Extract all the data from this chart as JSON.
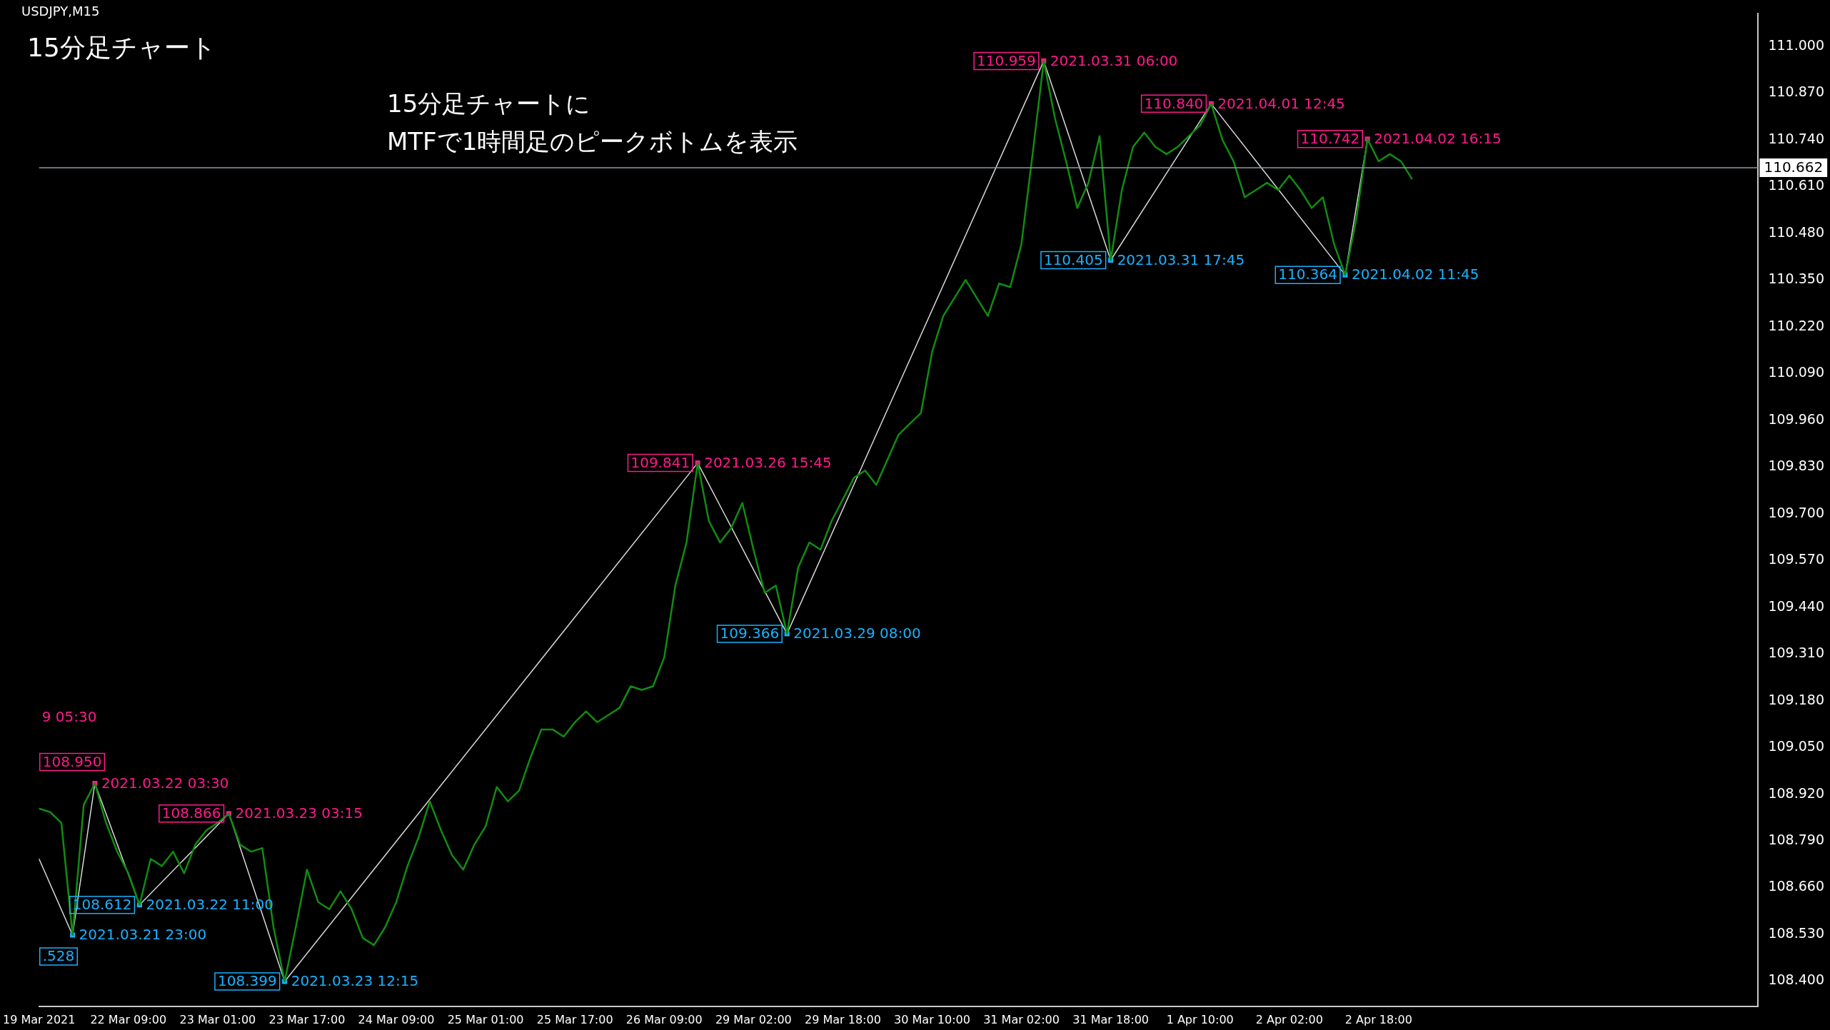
{
  "chart_data": {
    "type": "line",
    "title": "USDJPY,M15",
    "categories": [
      "19 Mar 2021",
      null,
      null,
      null,
      null,
      null,
      null,
      null,
      "22 Mar 09:00",
      null,
      null,
      null,
      null,
      null,
      null,
      null,
      "23 Mar 01:00",
      null,
      null,
      null,
      null,
      null,
      null,
      null,
      "23 Mar 17:00",
      null,
      null,
      null,
      null,
      null,
      null,
      null,
      "24 Mar 09:00",
      null,
      null,
      null,
      null,
      null,
      null,
      null,
      "25 Mar 01:00",
      null,
      null,
      null,
      null,
      null,
      null,
      null,
      "25 Mar 17:00",
      null,
      null,
      null,
      null,
      null,
      null,
      null,
      "26 Mar 09:00",
      null,
      null,
      null,
      null,
      null,
      null,
      null,
      "29 Mar 02:00",
      null,
      null,
      null,
      null,
      null,
      null,
      null,
      "29 Mar 18:00",
      null,
      null,
      null,
      null,
      null,
      null,
      null,
      "30 Mar 10:00",
      null,
      null,
      null,
      null,
      null,
      null,
      null,
      "31 Mar 02:00",
      null,
      null,
      null,
      null,
      null,
      null,
      null,
      "31 Mar 18:00",
      null,
      null,
      null,
      null,
      null,
      null,
      null,
      "1 Apr 10:00",
      null,
      null,
      null,
      null,
      null,
      null,
      null,
      "2 Apr 02:00",
      null,
      null,
      null,
      null,
      null,
      null,
      null,
      "2 Apr 18:00",
      null,
      null,
      null,
      null,
      null,
      null,
      null,
      null,
      null,
      null,
      null,
      null,
      null,
      null,
      null,
      null,
      null,
      null,
      null,
      null,
      null,
      null,
      null,
      null,
      null,
      null,
      null,
      null,
      null,
      null,
      null,
      null,
      null,
      null
    ],
    "series": [
      {
        "color": "#118c11",
        "marker": "none",
        "values": [
          108.88,
          108.87,
          108.84,
          108.528,
          108.89,
          108.95,
          108.84,
          108.76,
          108.7,
          108.612,
          108.74,
          108.72,
          108.76,
          108.7,
          108.78,
          108.82,
          108.84,
          108.866,
          108.78,
          108.76,
          108.77,
          108.55,
          108.399,
          108.55,
          108.71,
          108.62,
          108.6,
          108.65,
          108.6,
          108.52,
          108.5,
          108.55,
          108.62,
          108.72,
          108.8,
          108.9,
          108.82,
          108.75,
          108.71,
          108.78,
          108.83,
          108.94,
          108.9,
          108.93,
          109.02,
          109.1,
          109.1,
          109.08,
          109.12,
          109.15,
          109.12,
          109.14,
          109.16,
          109.22,
          109.21,
          109.22,
          109.3,
          109.5,
          109.62,
          109.841,
          109.68,
          109.62,
          109.66,
          109.73,
          109.6,
          109.48,
          109.5,
          109.366,
          109.55,
          109.62,
          109.6,
          109.68,
          109.74,
          109.8,
          109.82,
          109.78,
          109.85,
          109.92,
          109.95,
          109.98,
          110.15,
          110.25,
          110.3,
          110.35,
          110.3,
          110.25,
          110.34,
          110.33,
          110.45,
          110.7,
          110.959,
          110.8,
          110.68,
          110.55,
          110.62,
          110.75,
          110.405,
          110.6,
          110.72,
          110.76,
          110.72,
          110.7,
          110.72,
          110.75,
          110.78,
          110.84,
          110.74,
          110.68,
          110.58,
          110.6,
          110.62,
          110.6,
          110.64,
          110.6,
          110.55,
          110.58,
          110.45,
          110.364,
          110.52,
          110.742,
          110.68,
          110.7,
          110.68,
          110.63,
          null,
          null,
          null,
          null,
          null,
          null,
          null,
          null,
          null,
          null,
          null,
          null,
          null,
          null,
          null,
          null,
          null,
          null,
          null,
          null,
          null,
          null,
          null,
          null,
          null,
          null,
          null,
          null,
          null,
          null,
          null
        ]
      },
      {
        "color": "#d8d8d8",
        "marker": "square",
        "values": [
          108.74,
          null,
          null,
          108.528,
          null,
          108.95,
          null,
          null,
          null,
          108.612,
          null,
          null,
          null,
          null,
          null,
          null,
          null,
          108.866,
          null,
          null,
          null,
          null,
          108.399,
          null,
          null,
          null,
          null,
          null,
          null,
          null,
          null,
          null,
          null,
          null,
          null,
          null,
          null,
          null,
          null,
          null,
          null,
          null,
          null,
          null,
          null,
          null,
          null,
          null,
          null,
          null,
          null,
          null,
          null,
          null,
          null,
          null,
          null,
          null,
          null,
          109.841,
          null,
          null,
          null,
          null,
          null,
          null,
          null,
          109.366,
          null,
          null,
          null,
          null,
          null,
          null,
          null,
          null,
          null,
          null,
          null,
          null,
          null,
          null,
          null,
          null,
          null,
          null,
          null,
          null,
          null,
          null,
          110.959,
          null,
          null,
          null,
          null,
          null,
          110.405,
          null,
          null,
          null,
          null,
          null,
          null,
          null,
          null,
          110.84,
          null,
          null,
          null,
          null,
          null,
          null,
          null,
          null,
          null,
          null,
          null,
          110.364,
          null,
          110.742,
          null,
          null,
          null,
          null,
          null,
          null,
          null,
          null,
          null,
          null,
          null,
          null,
          null,
          null,
          null,
          null,
          null,
          null,
          null,
          null,
          null,
          null,
          null,
          null,
          null,
          null,
          null,
          null,
          null,
          null,
          null,
          null,
          null,
          null,
          null
        ],
        "colors": [
          null,
          null,
          null,
          "#1ab2ff",
          null,
          "#ff1a8c",
          null,
          null,
          null,
          "#1ab2ff",
          null,
          null,
          null,
          null,
          null,
          null,
          null,
          "#ff1a8c",
          null,
          null,
          null,
          null,
          "#1ab2ff",
          null,
          null,
          null,
          null,
          null,
          null,
          null,
          null,
          null,
          null,
          null,
          null,
          null,
          null,
          null,
          null,
          null,
          null,
          null,
          null,
          null,
          null,
          null,
          null,
          null,
          null,
          null,
          null,
          null,
          null,
          null,
          null,
          null,
          null,
          null,
          null,
          "#ff1a8c",
          null,
          null,
          null,
          null,
          null,
          null,
          null,
          "#1ab2ff",
          null,
          null,
          null,
          null,
          null,
          null,
          null,
          null,
          null,
          null,
          null,
          null,
          null,
          null,
          null,
          null,
          null,
          null,
          null,
          null,
          null,
          null,
          "#ff1a8c",
          null,
          null,
          null,
          null,
          null,
          "#1ab2ff",
          null,
          null,
          null,
          null,
          null,
          null,
          null,
          null,
          "#ff1a8c",
          null,
          null,
          null,
          null,
          null,
          null,
          null,
          null,
          null,
          null,
          null,
          "#1ab2ff",
          null,
          "#ff1a8c",
          null,
          null,
          null,
          null,
          null,
          null,
          null,
          null,
          null,
          null,
          null,
          null,
          null,
          null,
          null,
          null,
          null,
          null,
          null,
          null,
          null,
          null,
          null,
          null,
          null,
          null,
          null,
          null,
          null,
          null,
          null,
          null,
          null,
          null,
          null
        ],
        "value_labels": [
          null,
          null,
          null,
          null,
          null,
          "108.950",
          null,
          null,
          null,
          "108.612",
          null,
          null,
          null,
          null,
          null,
          null,
          null,
          "108.866",
          null,
          null,
          null,
          null,
          "108.399",
          null,
          null,
          null,
          null,
          null,
          null,
          null,
          null,
          null,
          null,
          null,
          null,
          null,
          null,
          null,
          null,
          null,
          null,
          null,
          null,
          null,
          null,
          null,
          null,
          null,
          null,
          null,
          null,
          null,
          null,
          null,
          null,
          null,
          null,
          null,
          null,
          "109.841",
          null,
          null,
          null,
          null,
          null,
          null,
          null,
          "109.366",
          null,
          null,
          null,
          null,
          null,
          null,
          null,
          null,
          null,
          null,
          null,
          null,
          null,
          null,
          null,
          null,
          null,
          null,
          null,
          null,
          null,
          null,
          "110.959",
          null,
          null,
          null,
          null,
          null,
          "110.405",
          null,
          null,
          null,
          null,
          null,
          null,
          null,
          null,
          "110.840",
          null,
          null,
          null,
          null,
          null,
          null,
          null,
          null,
          null,
          null,
          null,
          "110.364",
          null,
          "110.742",
          null,
          null,
          null,
          null,
          null,
          null,
          null,
          null,
          null,
          null,
          null,
          null,
          null,
          null,
          null,
          null,
          null,
          null,
          null,
          null,
          null,
          null,
          null,
          null,
          null,
          null,
          null,
          null,
          null,
          null,
          null,
          null,
          null,
          null,
          null
        ]
      }
    ],
    "ylim": [
      108.33,
      111.09
    ],
    "yticks": [
      {
        "value": 108.4,
        "label": "108.400"
      },
      {
        "value": 108.53,
        "label": "108.530"
      },
      {
        "value": 108.66,
        "label": "108.660"
      },
      {
        "value": 108.79,
        "label": "108.790"
      },
      {
        "value": 108.92,
        "label": "108.920"
      },
      {
        "value": 109.05,
        "label": "109.050"
      },
      {
        "value": 109.18,
        "label": "109.180"
      },
      {
        "value": 109.31,
        "label": "109.310"
      },
      {
        "value": 109.44,
        "label": "109.440"
      },
      {
        "value": 109.57,
        "label": "109.570"
      },
      {
        "value": 109.7,
        "label": "109.700"
      },
      {
        "value": 109.83,
        "label": "109.830"
      },
      {
        "value": 109.96,
        "label": "109.960"
      },
      {
        "value": 110.09,
        "label": "110.090"
      },
      {
        "value": 110.22,
        "label": "110.220"
      },
      {
        "value": 110.35,
        "label": "110.350"
      },
      {
        "value": 110.48,
        "label": "110.480"
      },
      {
        "value": 110.61,
        "label": "110.610"
      },
      {
        "value": 110.74,
        "label": "110.740"
      },
      {
        "value": 110.87,
        "label": "110.870"
      },
      {
        "value": 111.0,
        "label": "111.000"
      }
    ],
    "ref_lines": [
      {
        "axis": "y",
        "value": 110.662,
        "label": "110.662",
        "color": "#8a9aa8"
      }
    ],
    "grid": false,
    "legend": false,
    "annotations": [
      "15分足チャート",
      "15分足チャートに",
      "MTFで1時間足のピークボトムを表示",
      "9 05:30",
      ".528",
      "2021.03.21 23:00",
      "2021.03.22 03:30",
      "2021.03.22 11:00",
      "2021.03.23 03:15",
      "2021.03.23 12:15",
      "2021.03.26 15:45",
      "2021.03.29 08:00",
      "2021.03.31 06:00",
      "2021.03.31 17:45",
      "2021.04.01 12:45",
      "2021.04.02 11:45",
      "2021.04.02 16:15"
    ]
  }
}
